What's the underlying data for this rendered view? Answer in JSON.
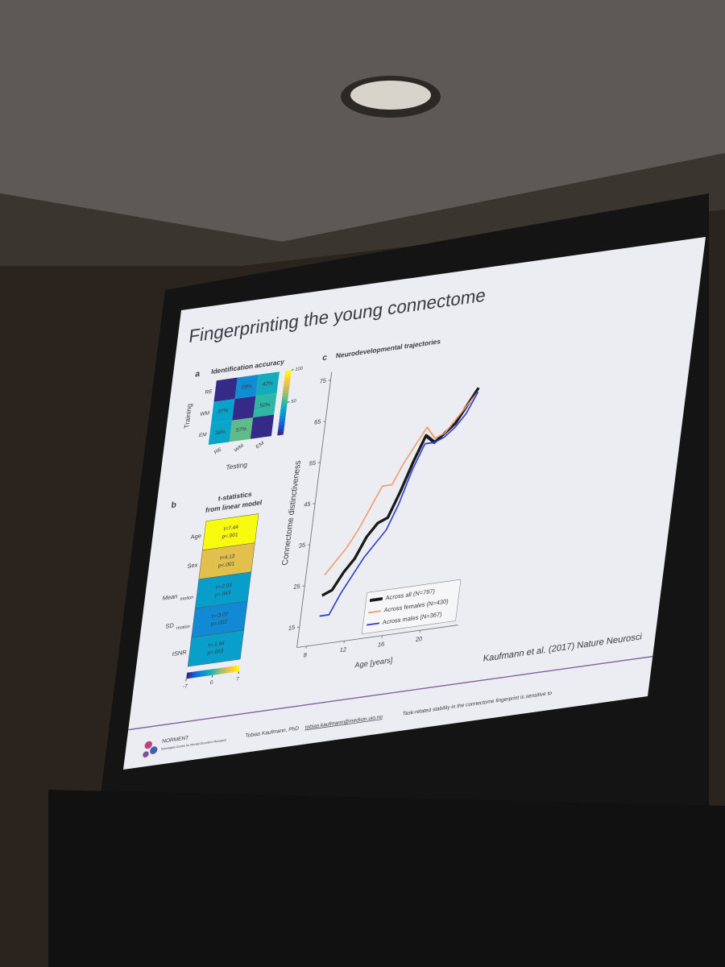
{
  "slide": {
    "title": "Fingerprinting the young connectome",
    "citation": "Kaufmann et al. (2017) Nature Neurosci",
    "footer": {
      "logo": "NORMENT",
      "logo_sub": "Norwegian Centre for Mental Disorders Research",
      "author": "Tobias Kaufmann, PhD",
      "email": "tobias.kaufmann@medisin.uio.no",
      "note": "Task-related stability in the connectome fingerprint is sensitive to"
    }
  },
  "panel_a": {
    "label": "a",
    "title": "Identification accuracy",
    "ylabel": "Training",
    "xlabel": "Testing",
    "rows": [
      "RE",
      "WM",
      "EM"
    ],
    "cols": [
      "RE",
      "WM",
      "EM"
    ],
    "values": [
      [
        null,
        29,
        42
      ],
      [
        37,
        null,
        50
      ],
      [
        38,
        57,
        null
      ]
    ],
    "value_labels": [
      [
        null,
        "29%",
        "42%"
      ],
      [
        "37%",
        null,
        "50%"
      ],
      [
        "38%",
        "57%",
        null
      ]
    ],
    "clim": [
      0,
      100
    ],
    "cticks": [
      50,
      100
    ]
  },
  "panel_b": {
    "label": "b",
    "title": "t-statistics",
    "subtitle": "from linear model",
    "rows": [
      {
        "name": "Age",
        "t": 7.44,
        "t_label": "t=7.44",
        "p_label": "p<.001"
      },
      {
        "name": "Sex",
        "t": 4.13,
        "t_label": "t=4.13",
        "p_label": "p<.001"
      },
      {
        "name": "Mean",
        "sub": "motion",
        "t": -2.03,
        "t_label": "t=-2.03",
        "p_label": "p=.043"
      },
      {
        "name": "SD",
        "sub": "motion",
        "t": -3.07,
        "t_label": "t=-3.07",
        "p_label": "p=.002"
      },
      {
        "name": "tSNR",
        "t": -1.94,
        "t_label": "t=-1.94",
        "p_label": "p=.053"
      }
    ],
    "clim": [
      -7,
      7
    ],
    "cticks": [
      -7,
      0,
      7
    ]
  },
  "chart_data": {
    "type": "line",
    "label": "c",
    "title": "Neurodevelopmental trajectories",
    "x_label": "Age [years]",
    "y_label": "Connectome distinctiveness",
    "x": [
      9,
      10,
      11,
      12,
      13,
      14,
      15,
      16,
      17,
      18,
      19,
      20,
      21,
      22,
      23
    ],
    "series": [
      {
        "name": "Across all (N=797)",
        "color": "#1a1a1a",
        "width": 4,
        "values": [
          22,
          23,
          27,
          30,
          35,
          38,
          39,
          45,
          52,
          58,
          56,
          58,
          60,
          64,
          68
        ]
      },
      {
        "name": "Across females (N=430)",
        "color": "#f0a070",
        "width": 2,
        "values": [
          27,
          30,
          33,
          37,
          42,
          47,
          47,
          52,
          56,
          60,
          57,
          58,
          61,
          64,
          67
        ]
      },
      {
        "name": "Across males (N=367)",
        "color": "#3040d0",
        "width": 2,
        "values": [
          17,
          17,
          22,
          26,
          30,
          33,
          36,
          42,
          50,
          56,
          56,
          57,
          59,
          62,
          67
        ]
      }
    ],
    "xlim": [
      7,
      24
    ],
    "xticks": [
      8,
      12,
      16,
      20
    ],
    "ylim": [
      10,
      77
    ],
    "yticks": [
      15,
      25,
      35,
      45,
      55,
      65,
      75
    ],
    "legend": "lower right"
  }
}
